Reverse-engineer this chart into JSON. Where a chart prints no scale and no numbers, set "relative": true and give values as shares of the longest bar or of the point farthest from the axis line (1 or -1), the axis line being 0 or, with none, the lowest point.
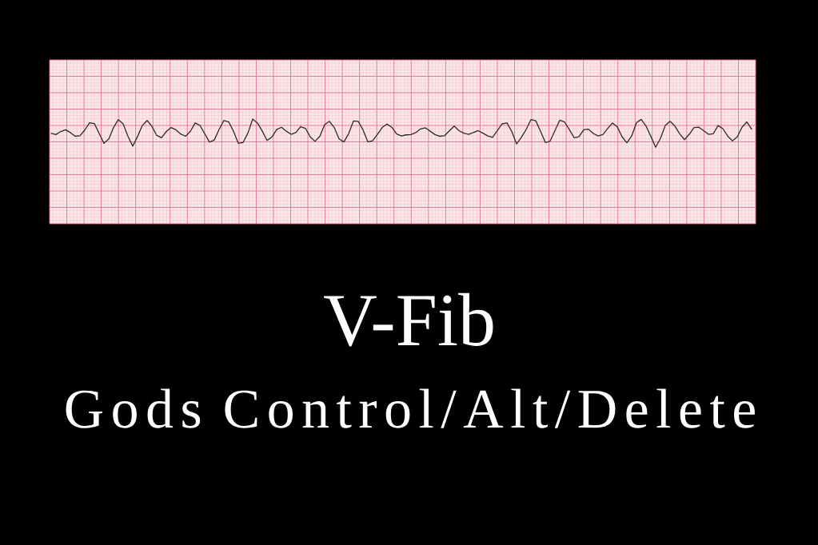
{
  "chart_data": {
    "type": "line",
    "title": "V-Fib",
    "subtitle": "Gods Control/Alt/Delete",
    "relative": true,
    "grid": true,
    "categories": [
      null,
      null,
      null,
      null,
      null,
      null,
      null,
      null,
      null,
      null,
      null,
      null,
      null,
      null,
      null,
      null,
      null,
      null,
      null,
      null,
      null,
      null,
      null,
      null,
      null,
      null,
      null,
      null,
      null,
      null,
      null,
      null,
      null,
      null,
      null,
      null,
      null,
      null,
      null,
      null,
      null,
      null,
      null,
      null,
      null,
      null,
      null,
      null,
      null,
      null,
      null,
      null,
      null,
      null,
      null,
      null,
      null,
      null,
      null,
      null,
      null,
      null,
      null,
      null,
      null,
      null,
      null,
      null,
      null,
      null,
      null,
      null,
      null,
      null,
      null,
      null,
      null,
      null,
      null,
      null,
      null,
      null,
      null,
      null,
      null,
      null,
      null,
      null,
      null,
      null,
      null,
      null,
      null,
      null,
      null,
      null,
      null,
      null,
      null,
      null,
      null,
      null,
      null,
      null,
      null,
      null,
      null,
      null,
      null,
      null,
      null,
      null,
      null,
      null,
      null,
      null,
      null,
      null,
      null,
      null,
      null,
      null,
      null,
      null,
      null,
      null,
      null,
      null,
      null,
      null,
      null,
      null,
      null,
      null,
      null,
      null,
      null,
      null,
      null,
      null,
      null,
      null,
      null,
      null,
      null,
      null,
      null
    ],
    "series": [
      {
        "color": "#2b2b2b",
        "values": [
          0.49,
          0.45,
          0.56,
          0.62,
          0.52,
          0.39,
          0.41,
          0.61,
          0.87,
          0.84,
          0.49,
          0.14,
          0.29,
          0.7,
          0.98,
          0.83,
          0.39,
          0.04,
          0.38,
          0.77,
          0.95,
          0.74,
          0.42,
          0.34,
          0.56,
          0.7,
          0.62,
          0.47,
          0.39,
          0.56,
          0.86,
          0.78,
          0.48,
          0.18,
          0.26,
          0.63,
          0.95,
          0.9,
          0.57,
          0.14,
          0.17,
          0.5,
          1,
          0.86,
          0.57,
          0.24,
          0.36,
          0.63,
          0.71,
          0.57,
          0.46,
          0.52,
          0.73,
          0.67,
          0.37,
          0.21,
          0.39,
          0.8,
          0.92,
          0.7,
          0.3,
          0.19,
          0.48,
          0.93,
          0.92,
          0.62,
          0.19,
          0.23,
          0.46,
          0.7,
          0.82,
          0.71,
          0.47,
          0.4,
          0.44,
          0.45,
          0.52,
          0.65,
          0.69,
          0.57,
          0.45,
          0.39,
          0.41,
          0.58,
          0.75,
          0.59,
          0.5,
          0.46,
          0.52,
          0.59,
          0.5,
          0.4,
          0.35,
          0.59,
          0.83,
          0.86,
          0.56,
          0.12,
          0.35,
          0.63,
          0.98,
          0.94,
          0.57,
          0.17,
          0.22,
          0.59,
          0.96,
          0.9,
          0.63,
          0.34,
          0.37,
          0.62,
          0.64,
          0.49,
          0.4,
          0.45,
          0.67,
          0.86,
          0.72,
          0.37,
          0.16,
          0.4,
          0.87,
          0.99,
          0.75,
          0.38,
          0,
          0.32,
          0.77,
          0.92,
          0.75,
          0.48,
          0.27,
          0.46,
          0.7,
          0.71,
          0.59,
          0.46,
          0.48,
          0.77,
          0.66,
          0.4,
          0.23,
          0.37,
          0.71,
          0.9,
          0.64
        ]
      }
    ]
  }
}
